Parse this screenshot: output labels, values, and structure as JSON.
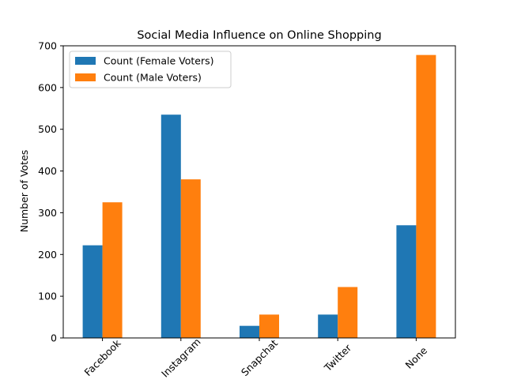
{
  "chart_data": {
    "type": "bar",
    "title": "Social Media Influence on Online Shopping",
    "xlabel": "",
    "ylabel": "Number of Votes",
    "categories": [
      "Facebook",
      "Instagram",
      "Snapchat",
      "Twitter",
      "None"
    ],
    "series": [
      {
        "name": "Count (Female Voters)",
        "color": "#1f77b4",
        "values": [
          222,
          535,
          29,
          56,
          270
        ]
      },
      {
        "name": "Count (Male Voters)",
        "color": "#ff7f0e",
        "values": [
          325,
          380,
          56,
          122,
          678
        ]
      }
    ],
    "ylim": [
      0,
      700
    ],
    "yticks": [
      0,
      100,
      200,
      300,
      400,
      500,
      600,
      700
    ],
    "grid": false,
    "legend_position": "top-left"
  }
}
